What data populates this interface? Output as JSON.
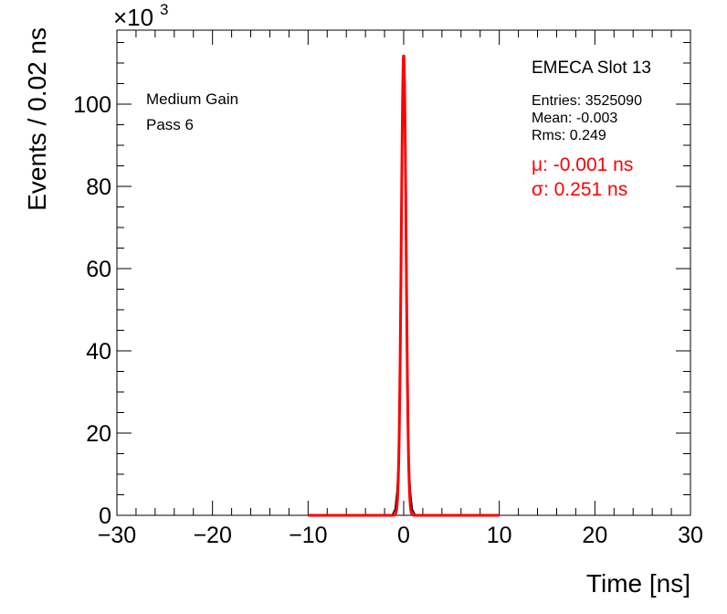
{
  "chart_data": {
    "type": "line",
    "xlabel": "Time [ns]",
    "ylabel": "Events / 0.02 ns",
    "xlim": [
      -30,
      30
    ],
    "ylim": [
      0,
      118
    ],
    "y_multiplier": "×10",
    "y_multiplier_exp": "3",
    "xticks": [
      -30,
      -20,
      -10,
      0,
      10,
      20,
      30
    ],
    "xtick_labels": [
      "−30",
      "−20",
      "−10",
      "0",
      "10",
      "20",
      "30"
    ],
    "yticks": [
      0,
      20,
      40,
      60,
      80,
      100
    ],
    "ytick_labels": [
      "0",
      "20",
      "40",
      "60",
      "80",
      "100"
    ],
    "annotations": [
      "Medium Gain",
      "Pass 6"
    ],
    "stats": {
      "title": "EMECA Slot 13",
      "entries": "Entries: 3525090",
      "mean": "Mean: -0.003",
      "rms": "Rms: 0.249"
    },
    "fit": {
      "mu_label": "μ: -0.001 ns",
      "sigma_label": "σ: 0.251 ns",
      "mu": -0.001,
      "sigma": 0.251,
      "amplitude": 112,
      "range": [
        -10,
        10
      ],
      "color": "#ff0000"
    },
    "series": [
      {
        "color": "#000000",
        "x": [
          -10,
          -1.2,
          -0.9,
          -0.7,
          -0.5,
          -0.35,
          -0.25,
          -0.15,
          -0.05,
          0.0,
          0.05,
          0.15,
          0.25,
          0.35,
          0.5,
          0.7,
          0.9,
          1.2,
          10
        ],
        "values": [
          0,
          0.1,
          1.5,
          6,
          16,
          32,
          57,
          90,
          108,
          112,
          108,
          88,
          56,
          31,
          16,
          6,
          1.5,
          0.1,
          0
        ]
      }
    ]
  }
}
